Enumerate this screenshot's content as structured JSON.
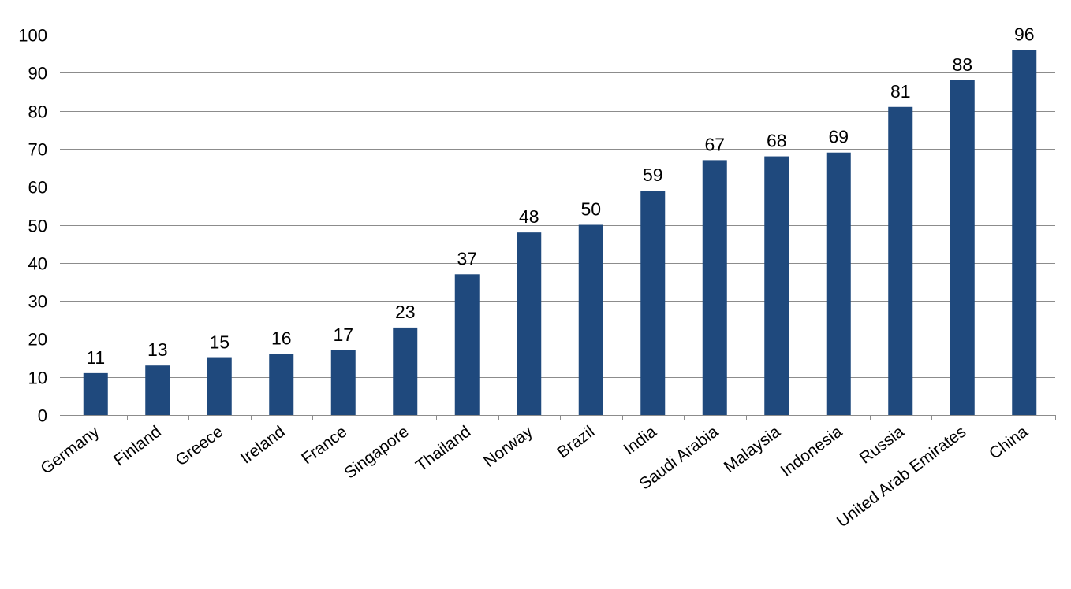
{
  "chart_data": {
    "type": "bar",
    "title": "",
    "xlabel": "",
    "ylabel": "",
    "categories": [
      "Germany",
      "Finland",
      "Greece",
      "Ireland",
      "France",
      "Singapore",
      "Thailand",
      "Norway",
      "Brazil",
      "India",
      "Saudi Arabia",
      "Malaysia",
      "Indonesia",
      "Russia",
      "United Arab Emirates",
      "China"
    ],
    "values": [
      11,
      13,
      15,
      16,
      17,
      23,
      37,
      48,
      50,
      59,
      67,
      68,
      69,
      81,
      88,
      96
    ],
    "data_labels": [
      "11",
      "13",
      "15",
      "16",
      "17",
      "23",
      "37",
      "48",
      "50",
      "59",
      "67",
      "68",
      "69",
      "81",
      "88",
      "96"
    ],
    "ylim": [
      0,
      100
    ],
    "yticks": [
      0,
      10,
      20,
      30,
      40,
      50,
      60,
      70,
      80,
      90,
      100
    ],
    "ytick_labels": [
      "0",
      "10",
      "20",
      "30",
      "40",
      "50",
      "60",
      "70",
      "80",
      "90",
      "100"
    ],
    "grid": true,
    "legend": "none",
    "bar_color": "#1f497d",
    "grid_color": "#8c8c8c"
  }
}
